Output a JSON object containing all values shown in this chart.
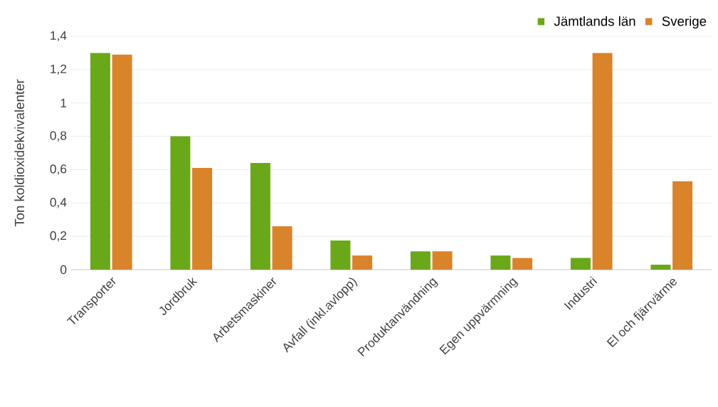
{
  "chart_data": {
    "type": "bar",
    "ylabel": "Ton koldioxidekvivalenter",
    "categories": [
      "Transporter",
      "Jordbruk",
      "Arbetsmaskiner",
      "Avfall (inkl.avlopp)",
      "Produktanvändning",
      "Egen uppvärmning",
      "Industri",
      "El och fjärrvärme"
    ],
    "series": [
      {
        "name": "Jämtlands län",
        "color": "#6aa819",
        "values": [
          1.3,
          0.8,
          0.64,
          0.175,
          0.11,
          0.085,
          0.07,
          0.03
        ]
      },
      {
        "name": "Sverige",
        "color": "#d9832b",
        "values": [
          1.29,
          0.61,
          0.26,
          0.085,
          0.11,
          0.07,
          1.3,
          0.53
        ]
      }
    ],
    "ylim": [
      0,
      1.4
    ],
    "yticks": [
      0,
      {
        "value": 0.2,
        "label": "0,2"
      },
      {
        "value": 0.4,
        "label": "0,4"
      },
      {
        "value": 0.6,
        "label": "0,6"
      },
      {
        "value": 0.8,
        "label": "0,8"
      },
      1,
      {
        "value": 1.2,
        "label": "1,2"
      },
      {
        "value": 1.4,
        "label": "1,4"
      }
    ],
    "grid": "y",
    "legend": "top right"
  }
}
